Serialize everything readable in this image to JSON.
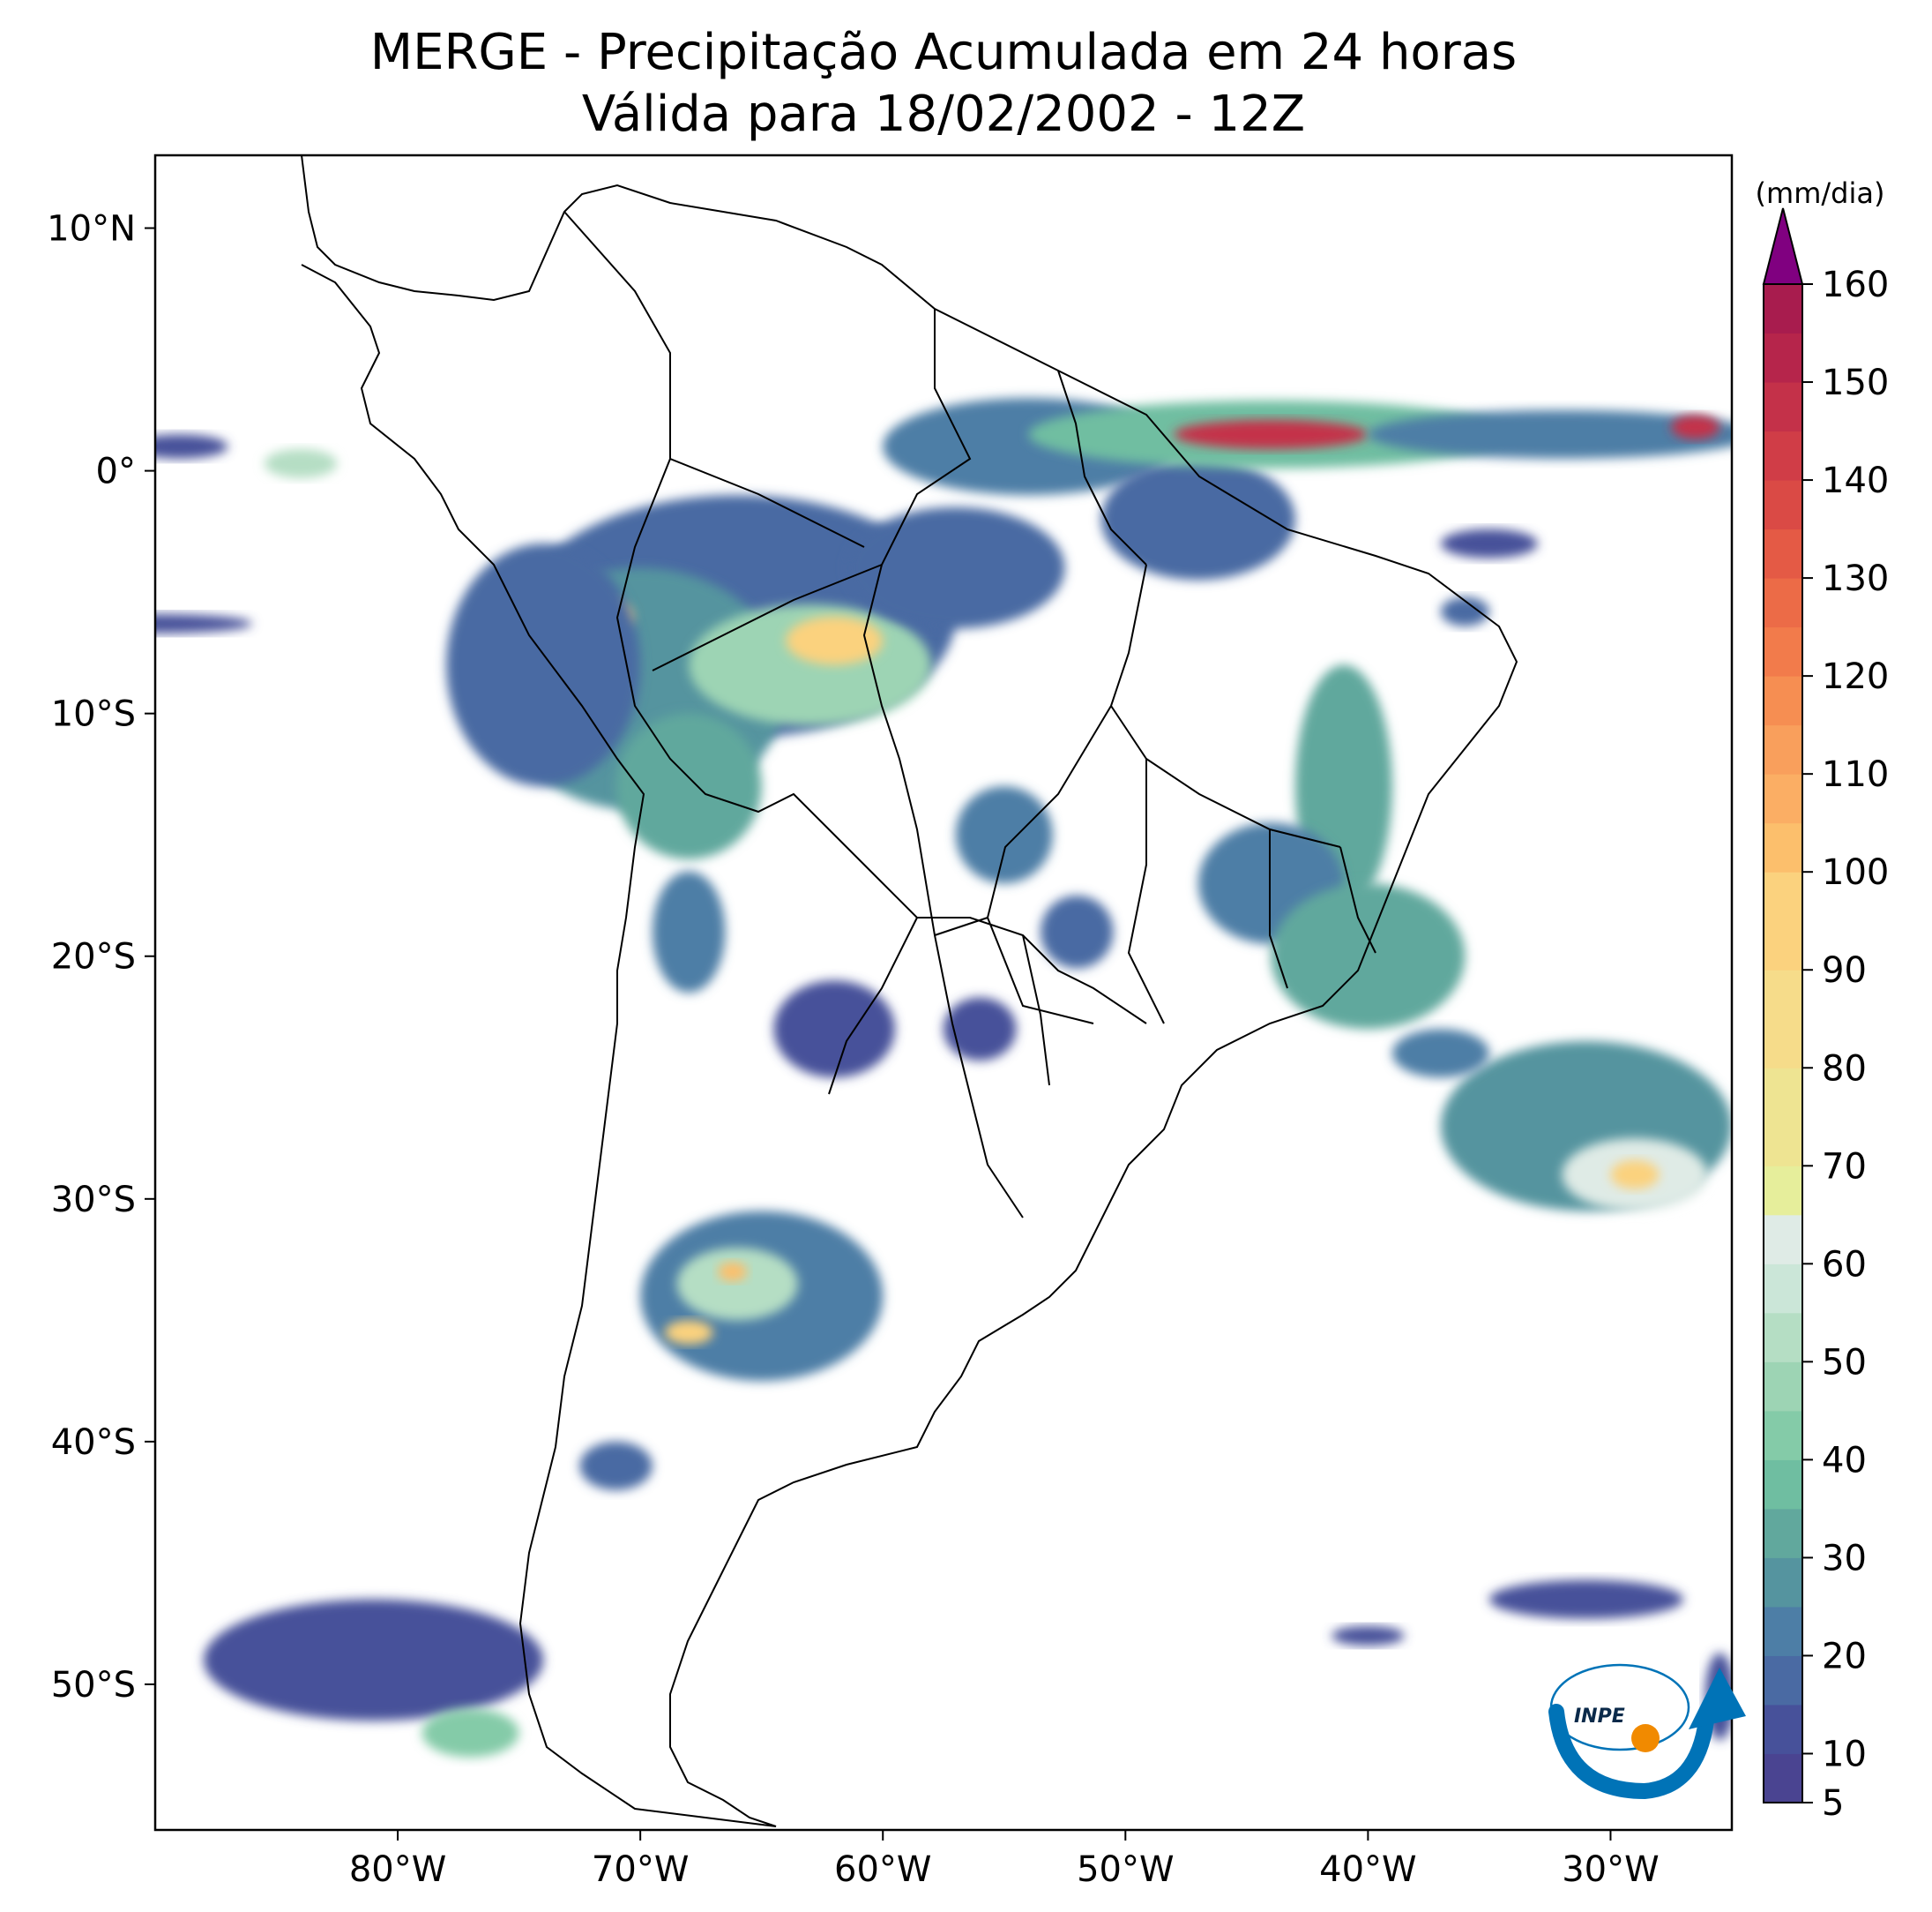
{
  "title": {
    "line1": "MERGE - Precipitação Acumulada em 24 horas",
    "line2": "Válida para 18/02/2002 - 12Z"
  },
  "map": {
    "lon_range": [
      -90,
      -25
    ],
    "lat_range": [
      -56,
      13
    ],
    "lon_ticks": [
      {
        "value": -80,
        "label": "80°W"
      },
      {
        "value": -70,
        "label": "70°W"
      },
      {
        "value": -60,
        "label": "60°W"
      },
      {
        "value": -50,
        "label": "50°W"
      },
      {
        "value": -40,
        "label": "40°W"
      },
      {
        "value": -30,
        "label": "30°W"
      }
    ],
    "lat_ticks": [
      {
        "value": 10,
        "label": "10°N"
      },
      {
        "value": 0,
        "label": "0°"
      },
      {
        "value": -10,
        "label": "10°S"
      },
      {
        "value": -20,
        "label": "20°S"
      },
      {
        "value": -30,
        "label": "30°S"
      },
      {
        "value": -40,
        "label": "40°S"
      },
      {
        "value": -50,
        "label": "50°S"
      }
    ],
    "precip_areas": [
      {
        "lon": -66,
        "lat": -6,
        "rx": 9,
        "ry": 5,
        "level": 15
      },
      {
        "lon": -70,
        "lat": -9,
        "rx": 6,
        "ry": 5,
        "level": 25
      },
      {
        "lon": -63,
        "lat": -8,
        "rx": 5,
        "ry": 2.5,
        "level": 45
      },
      {
        "lon": -62,
        "lat": -7,
        "rx": 2,
        "ry": 1,
        "level": 95
      },
      {
        "lon": -71.5,
        "lat": -6,
        "rx": 1.2,
        "ry": 0.7,
        "level": 95
      },
      {
        "lon": -74,
        "lat": -8,
        "rx": 4,
        "ry": 5,
        "level": 15
      },
      {
        "lon": -68,
        "lat": -13,
        "rx": 3,
        "ry": 3,
        "level": 30
      },
      {
        "lon": -57,
        "lat": -4,
        "rx": 4.5,
        "ry": 2.5,
        "level": 15
      },
      {
        "lon": -54,
        "lat": 1,
        "rx": 6,
        "ry": 2,
        "level": 20
      },
      {
        "lon": -47,
        "lat": -2,
        "rx": 4,
        "ry": 2.5,
        "level": 15
      },
      {
        "lon": -44,
        "lat": 1.5,
        "rx": 10,
        "ry": 1.4,
        "level": 35
      },
      {
        "lon": -44,
        "lat": 1.5,
        "rx": 4,
        "ry": 0.6,
        "level": 145
      },
      {
        "lon": -32,
        "lat": 1.5,
        "rx": 8,
        "ry": 1,
        "level": 20
      },
      {
        "lon": -26.5,
        "lat": 1.8,
        "rx": 1,
        "ry": 0.5,
        "level": 145
      },
      {
        "lon": -41,
        "lat": -13,
        "rx": 2,
        "ry": 5,
        "level": 30
      },
      {
        "lon": -44,
        "lat": -17,
        "rx": 3,
        "ry": 2.5,
        "level": 20
      },
      {
        "lon": -40,
        "lat": -20,
        "rx": 4,
        "ry": 3,
        "level": 30
      },
      {
        "lon": -55,
        "lat": -15,
        "rx": 2,
        "ry": 2,
        "level": 20
      },
      {
        "lon": -52,
        "lat": -19,
        "rx": 1.5,
        "ry": 1.5,
        "level": 15
      },
      {
        "lon": -62,
        "lat": -23,
        "rx": 2.5,
        "ry": 2,
        "level": 10
      },
      {
        "lon": -56,
        "lat": -23,
        "rx": 1.5,
        "ry": 1.3,
        "level": 10
      },
      {
        "lon": -68,
        "lat": -19,
        "rx": 1.5,
        "ry": 2.5,
        "level": 20
      },
      {
        "lon": -65,
        "lat": -34,
        "rx": 5,
        "ry": 3.5,
        "level": 20
      },
      {
        "lon": -66,
        "lat": -33.5,
        "rx": 2.5,
        "ry": 1.5,
        "level": 50
      },
      {
        "lon": -66.2,
        "lat": -33,
        "rx": 0.6,
        "ry": 0.4,
        "level": 100
      },
      {
        "lon": -68,
        "lat": -35.5,
        "rx": 1,
        "ry": 0.5,
        "level": 95
      },
      {
        "lon": -71,
        "lat": -41,
        "rx": 1.5,
        "ry": 1,
        "level": 15
      },
      {
        "lon": -31,
        "lat": -27,
        "rx": 6,
        "ry": 3.5,
        "level": 25
      },
      {
        "lon": -29,
        "lat": -29,
        "rx": 3,
        "ry": 1.5,
        "level": 60
      },
      {
        "lon": -29,
        "lat": -29,
        "rx": 1,
        "ry": 0.6,
        "level": 90
      },
      {
        "lon": -37,
        "lat": -24,
        "rx": 2,
        "ry": 1,
        "level": 20
      },
      {
        "lon": -81,
        "lat": -49,
        "rx": 7,
        "ry": 2.5,
        "level": 12
      },
      {
        "lon": -77,
        "lat": -52,
        "rx": 2,
        "ry": 1,
        "level": 40
      },
      {
        "lon": -84,
        "lat": 0.3,
        "rx": 1.5,
        "ry": 0.6,
        "level": 50
      },
      {
        "lon": -90,
        "lat": -6.3,
        "rx": 4,
        "ry": 0.4,
        "level": 10
      },
      {
        "lon": -89,
        "lat": 1,
        "rx": 2,
        "ry": 0.5,
        "level": 10
      },
      {
        "lon": -31,
        "lat": -46.5,
        "rx": 4,
        "ry": 0.8,
        "level": 10
      },
      {
        "lon": -40,
        "lat": -48,
        "rx": 1.5,
        "ry": 0.4,
        "level": 10
      },
      {
        "lon": -25.5,
        "lat": -50.5,
        "rx": 0.6,
        "ry": 1.8,
        "level": 10
      },
      {
        "lon": -36,
        "lat": -5.8,
        "rx": 1,
        "ry": 0.6,
        "level": 15
      },
      {
        "lon": -35,
        "lat": -3,
        "rx": 2,
        "ry": 0.6,
        "level": 10
      }
    ]
  },
  "colorbar": {
    "unit_label": "(mm/dia)",
    "min": 5,
    "max": 160,
    "ticks": [
      {
        "value": 5,
        "label": "5"
      },
      {
        "value": 10,
        "label": "10"
      },
      {
        "value": 20,
        "label": "20"
      },
      {
        "value": 30,
        "label": "30"
      },
      {
        "value": 40,
        "label": "40"
      },
      {
        "value": 50,
        "label": "50"
      },
      {
        "value": 60,
        "label": "60"
      },
      {
        "value": 70,
        "label": "70"
      },
      {
        "value": 80,
        "label": "80"
      },
      {
        "value": 90,
        "label": "90"
      },
      {
        "value": 100,
        "label": "100"
      },
      {
        "value": 110,
        "label": "110"
      },
      {
        "value": 120,
        "label": "120"
      },
      {
        "value": 130,
        "label": "130"
      },
      {
        "value": 140,
        "label": "140"
      },
      {
        "value": 150,
        "label": "150"
      },
      {
        "value": 160,
        "label": "160"
      }
    ],
    "bands": [
      {
        "from": 5,
        "to": 10,
        "color": "#4a4491"
      },
      {
        "from": 10,
        "to": 15,
        "color": "#47519a"
      },
      {
        "from": 15,
        "to": 20,
        "color": "#4a6aa3"
      },
      {
        "from": 20,
        "to": 25,
        "color": "#4d7ea6"
      },
      {
        "from": 25,
        "to": 30,
        "color": "#55949f"
      },
      {
        "from": 30,
        "to": 35,
        "color": "#61a89d"
      },
      {
        "from": 35,
        "to": 40,
        "color": "#6fbea1"
      },
      {
        "from": 40,
        "to": 45,
        "color": "#84cba8"
      },
      {
        "from": 45,
        "to": 50,
        "color": "#9dd4b4"
      },
      {
        "from": 50,
        "to": 55,
        "color": "#b5dec4"
      },
      {
        "from": 55,
        "to": 60,
        "color": "#cbe6d8"
      },
      {
        "from": 60,
        "to": 65,
        "color": "#dfebe6"
      },
      {
        "from": 65,
        "to": 70,
        "color": "#e6ee9b"
      },
      {
        "from": 70,
        "to": 80,
        "color": "#eee492"
      },
      {
        "from": 80,
        "to": 90,
        "color": "#f6dc8a"
      },
      {
        "from": 90,
        "to": 100,
        "color": "#fbd27e"
      },
      {
        "from": 100,
        "to": 105,
        "color": "#fcbf6c"
      },
      {
        "from": 105,
        "to": 110,
        "color": "#fbae64"
      },
      {
        "from": 110,
        "to": 115,
        "color": "#f99f5c"
      },
      {
        "from": 115,
        "to": 120,
        "color": "#f68e52"
      },
      {
        "from": 120,
        "to": 125,
        "color": "#f27b4b"
      },
      {
        "from": 125,
        "to": 130,
        "color": "#ec6b47"
      },
      {
        "from": 130,
        "to": 135,
        "color": "#e45a45"
      },
      {
        "from": 135,
        "to": 140,
        "color": "#da4a45"
      },
      {
        "from": 140,
        "to": 145,
        "color": "#d03d47"
      },
      {
        "from": 145,
        "to": 150,
        "color": "#c43149"
      },
      {
        "from": 150,
        "to": 155,
        "color": "#b6254b"
      },
      {
        "from": 155,
        "to": 160,
        "color": "#a81c4e"
      }
    ],
    "over_color": "#800080"
  },
  "logo": {
    "text": "INPE",
    "accent_color": "#f18a00",
    "brand_color": "#0073b7"
  }
}
